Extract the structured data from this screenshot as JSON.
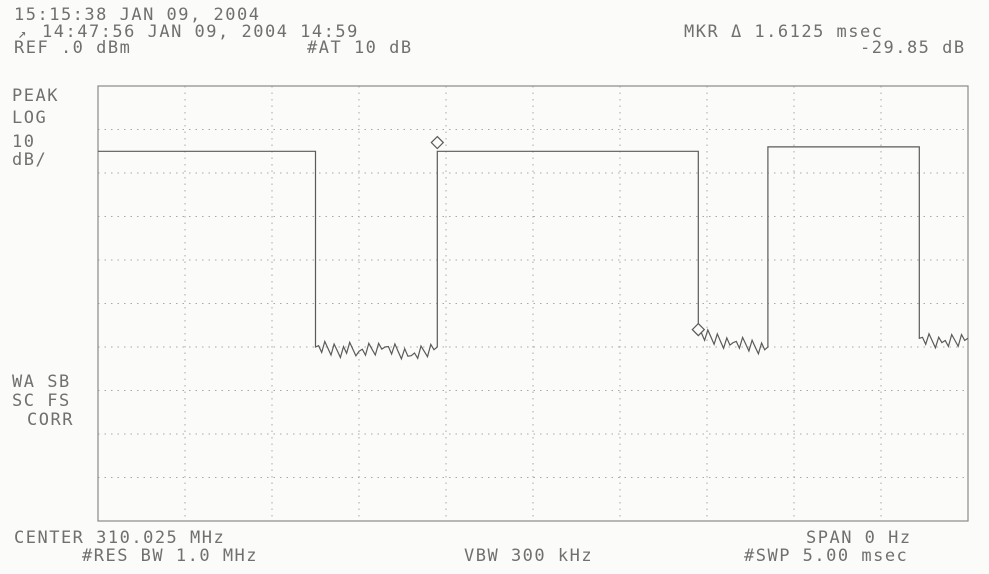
{
  "header": {
    "timestamp_line": "15:15:38 JAN 09, 2004",
    "trace_line": "14:47:56 JAN 09, 2004 14:59",
    "ref_level": "REF .0 dBm",
    "attenuation": "#AT 10 dB",
    "marker_delta_time": "MKR Δ 1.6125 msec",
    "marker_delta_level": "-29.85 dB",
    "trace_icon": "trace-memory-icon"
  },
  "left_annotations": {
    "detector": "PEAK",
    "scale_type": "LOG",
    "scale_value": "10",
    "scale_unit": "dB/",
    "wa_sb": "WA SB",
    "sc_fs": "SC FS",
    "corr": "CORR"
  },
  "footer": {
    "center_freq": "CENTER 310.025 MHz",
    "res_bw": "#RES BW 1.0 MHz",
    "vbw": "VBW 300 kHz",
    "span": "SPAN 0 Hz",
    "sweep": "#SWP 5.00 msec"
  },
  "colors": {
    "trace": "#5a5a5a",
    "graticule": "#a8a8a8",
    "frame": "#8a8a8a",
    "background": "#fbfbf9"
  },
  "chart_data": {
    "type": "line",
    "title": "",
    "xlabel": "",
    "ylabel": "",
    "xlim": [
      0,
      5.0
    ],
    "ylim": [
      -100,
      0
    ],
    "grid": true,
    "legend": "none",
    "series": [
      {
        "x": [
          0,
          1.25,
          1.25,
          1.5,
          1.65,
          1.8,
          1.95,
          1.95,
          2.7,
          3.45,
          3.45,
          3.65,
          3.85,
          3.85,
          4.3,
          4.72,
          4.72,
          4.85,
          5.0
        ],
        "y": [
          -15,
          -15,
          -60,
          -61,
          -60,
          -62,
          -60,
          -15,
          -15,
          -15,
          -57,
          -59,
          -60,
          -14,
          -14,
          -14,
          -58,
          -59,
          -58
        ]
      }
    ],
    "markers": [
      {
        "x": 1.95,
        "y": -13
      },
      {
        "x": 3.45,
        "y": -56
      }
    ]
  }
}
